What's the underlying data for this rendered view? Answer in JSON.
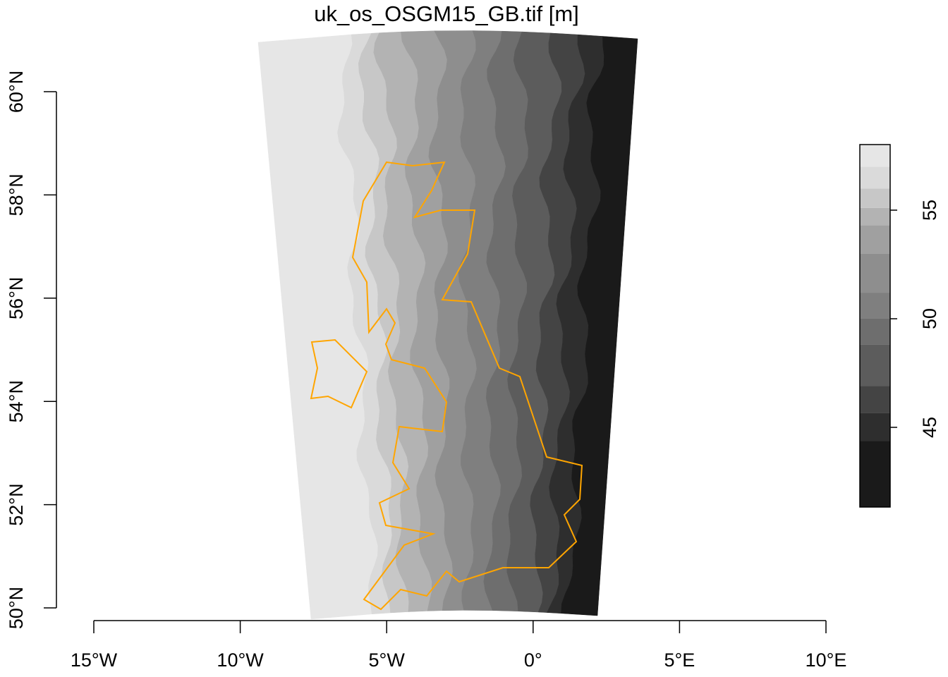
{
  "title": "uk_os_OSGM15_GB.tif [m]",
  "map": {
    "xlim": [
      -15,
      10
    ],
    "ylim": [
      50,
      60
    ],
    "xticks": [
      {
        "value": -15,
        "label": "15°W"
      },
      {
        "value": -10,
        "label": "10°W"
      },
      {
        "value": -5,
        "label": "5°W"
      },
      {
        "value": 0,
        "label": "0°"
      },
      {
        "value": 5,
        "label": "5°E"
      },
      {
        "value": 10,
        "label": "10°E"
      }
    ],
    "yticks": [
      {
        "value": 50,
        "label": "50°N"
      },
      {
        "value": 52,
        "label": "52°N"
      },
      {
        "value": 54,
        "label": "54°N"
      },
      {
        "value": 56,
        "label": "56°N"
      },
      {
        "value": 58,
        "label": "58°N"
      },
      {
        "value": 60,
        "label": "60°N"
      }
    ],
    "outline_color": "#ffa500"
  },
  "legend": {
    "breaks": [
      41.33,
      44.38,
      45.65,
      46.9,
      48.8,
      50,
      51.2,
      53,
      54.3,
      55.1,
      56,
      57,
      58.02
    ],
    "colors": [
      "#1a1a1a",
      "#2e2e2e",
      "#444444",
      "#5c5c5c",
      "#6e6e6e",
      "#7f7f7f",
      "#8e8e8e",
      "#a0a0a0",
      "#b3b3b3",
      "#c7c7c7",
      "#dadada",
      "#e6e6e6"
    ],
    "ticks": [
      45,
      50,
      55
    ]
  }
}
